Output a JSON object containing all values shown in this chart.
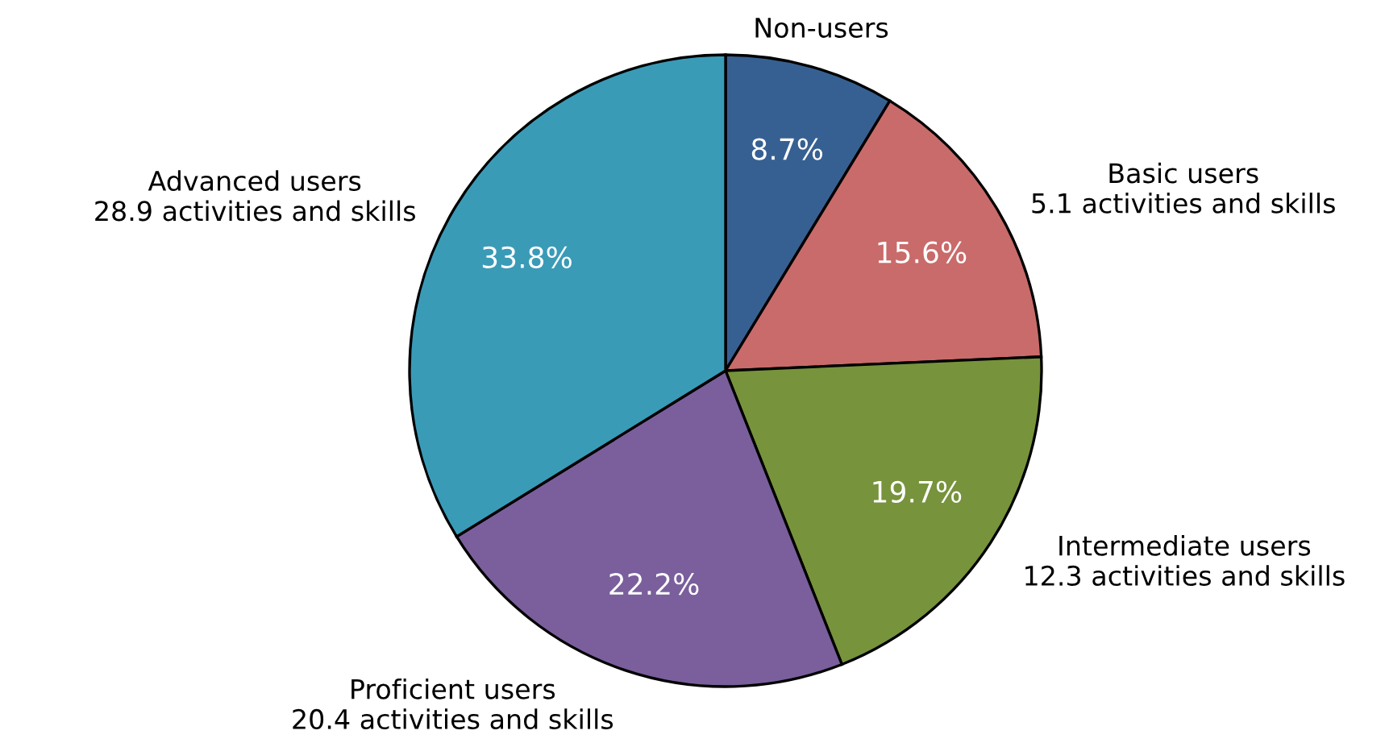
{
  "chart_data": {
    "type": "pie",
    "categories": [
      "Non-users",
      "Basic users\n5.1 activities and skills",
      "Intermediate users\n12.3 activities and skills",
      "Proficient users\n20.4 activities and skills",
      "Advanced users\n28.9 activities and skills"
    ],
    "values": [
      8.7,
      15.6,
      19.7,
      22.2,
      33.8
    ],
    "value_labels": [
      "8.7%",
      "15.6%",
      "19.7%",
      "22.2%",
      "33.8%"
    ],
    "colors": [
      "#376092",
      "#c96b6a",
      "#77933c",
      "#7a5f9c",
      "#3a9bb7"
    ],
    "legend": false
  }
}
